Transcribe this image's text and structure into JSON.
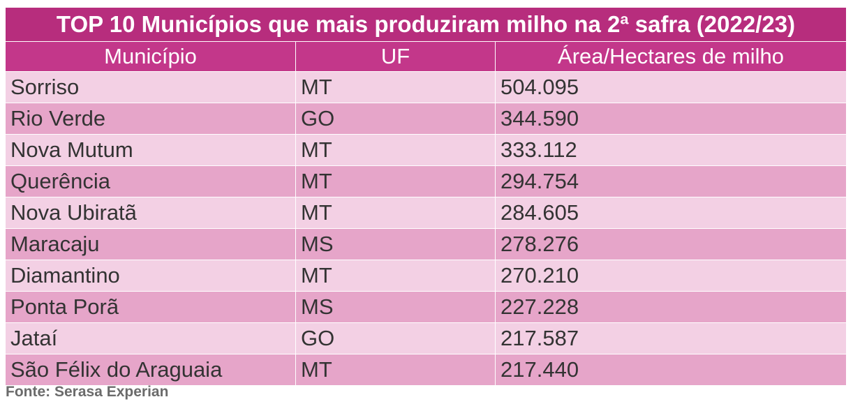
{
  "colors": {
    "title_bg": "#b72d7d",
    "header_bg": "#c3378a",
    "row_light": "#f3d0e4",
    "row_dark": "#e6a5c9",
    "text": "#333333",
    "source_text": "#6b6b6b"
  },
  "chart_data": {
    "type": "table",
    "title": "TOP 10 Municípios que mais produziram milho na 2ª safra (2022/23)",
    "columns": [
      "Município",
      "UF",
      "Área/Hectares de milho"
    ],
    "rows": [
      [
        "Sorriso",
        "MT",
        "504.095"
      ],
      [
        "Rio Verde",
        "GO",
        "344.590"
      ],
      [
        "Nova Mutum",
        "MT",
        "333.112"
      ],
      [
        "Querência",
        "MT",
        "294.754"
      ],
      [
        "Nova Ubiratã",
        "MT",
        "284.605"
      ],
      [
        "Maracaju",
        "MS",
        "278.276"
      ],
      [
        "Diamantino",
        "MT",
        "270.210"
      ],
      [
        "Ponta Porã",
        "MS",
        "227.228"
      ],
      [
        "Jataí",
        "GO",
        "217.587"
      ],
      [
        "São Félix do Araguaia",
        "MT",
        "217.440"
      ]
    ],
    "source": "Fonte: Serasa Experian"
  }
}
